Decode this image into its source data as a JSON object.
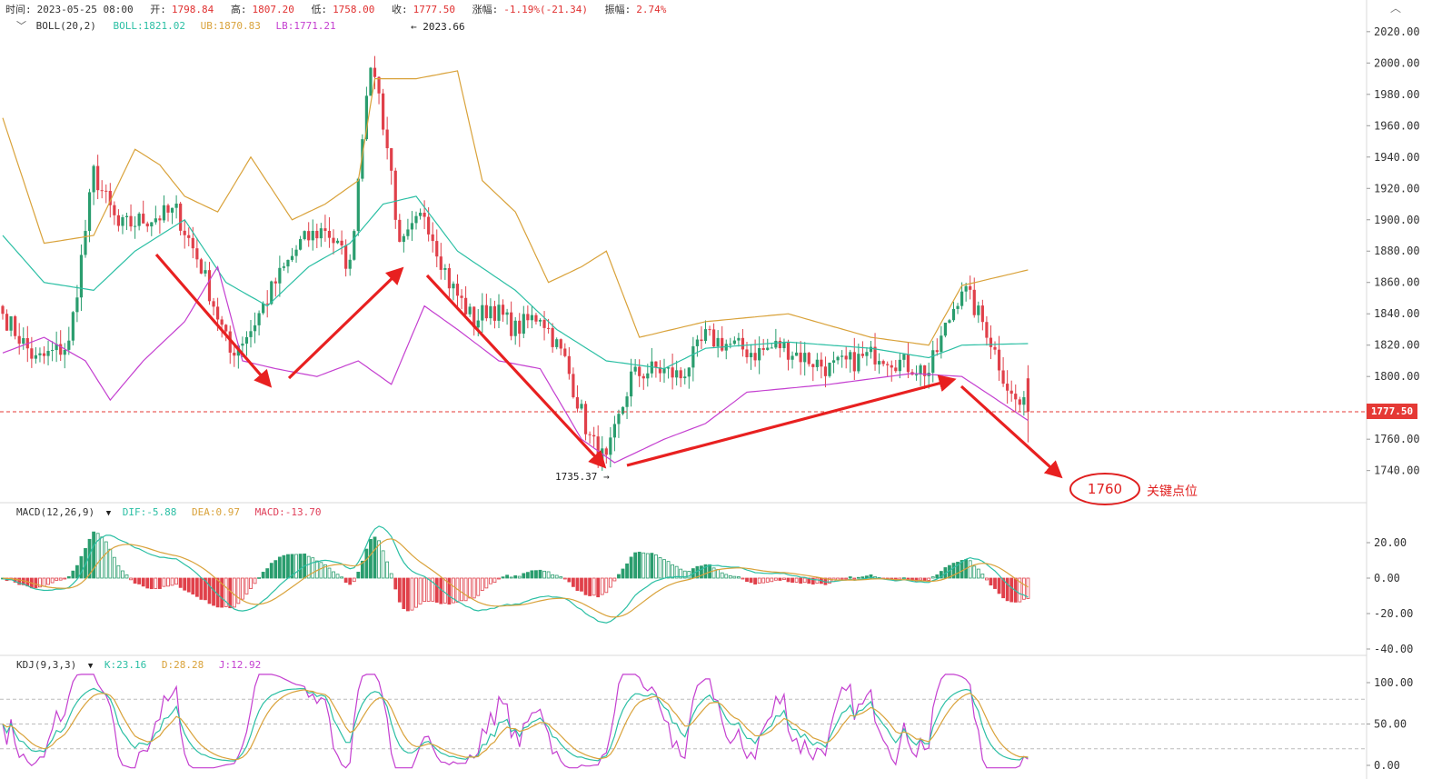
{
  "header": {
    "time_label": "时间:",
    "time": "2023-05-25 08:00",
    "open_label": "开:",
    "open": "1798.84",
    "high_label": "高:",
    "high": "1807.20",
    "low_label": "低:",
    "low": "1758.00",
    "close_label": "收:",
    "close": "1777.50",
    "change_label": "涨幅:",
    "change": "-1.19%(-21.34)",
    "amplitude_label": "振幅:",
    "amplitude": "2.74%"
  },
  "indicators": {
    "boll": {
      "name": "BOLL(20,2)",
      "boll": "BOLL:1821.02",
      "ub": "UB:1870.83",
      "lb": "LB:1771.21"
    },
    "macd": {
      "name": "MACD(12,26,9)",
      "dif": "DIF:-5.88",
      "dea": "DEA:0.97",
      "macd": "MACD:-13.70"
    },
    "kdj": {
      "name": "KDJ(9,3,3)",
      "k": "K:23.16",
      "d": "D:28.28",
      "j": "J:12.92"
    }
  },
  "annotations": {
    "high_marker": "2023.66",
    "low_marker": "1735.37",
    "current_price": "1777.50",
    "key_value": "1760",
    "key_text": "关键点位"
  },
  "colors": {
    "up": "#2a9d6e",
    "down": "#e0404a",
    "boll": "#2bbfa4",
    "ub": "#d9a23a",
    "lb": "#c43fd0",
    "arrow": "#e82020",
    "current_line": "#e53935"
  },
  "chart_data": [
    {
      "type": "candlestick",
      "title": "",
      "y_ticks": [
        "2020.00",
        "2000.00",
        "1980.00",
        "1960.00",
        "1940.00",
        "1920.00",
        "1900.00",
        "1880.00",
        "1860.00",
        "1840.00",
        "1820.00",
        "1800.00",
        "1760.00",
        "1740.00"
      ],
      "ylim": [
        1725,
        2030
      ],
      "close_waypoints": [
        [
          0,
          1840
        ],
        [
          8,
          1810
        ],
        [
          16,
          1820
        ],
        [
          22,
          1930
        ],
        [
          28,
          1895
        ],
        [
          34,
          1900
        ],
        [
          42,
          1905
        ],
        [
          48,
          1870
        ],
        [
          55,
          1815
        ],
        [
          60,
          1830
        ],
        [
          66,
          1860
        ],
        [
          72,
          1885
        ],
        [
          78,
          1895
        ],
        [
          84,
          1870
        ],
        [
          88,
          1985
        ],
        [
          90,
          1995
        ],
        [
          94,
          1930
        ],
        [
          96,
          1880
        ],
        [
          102,
          1905
        ],
        [
          108,
          1860
        ],
        [
          114,
          1835
        ],
        [
          118,
          1845
        ],
        [
          124,
          1830
        ],
        [
          130,
          1840
        ],
        [
          136,
          1810
        ],
        [
          142,
          1760
        ],
        [
          146,
          1745
        ],
        [
          152,
          1800
        ],
        [
          158,
          1805
        ],
        [
          164,
          1800
        ],
        [
          170,
          1825
        ],
        [
          176,
          1820
        ],
        [
          182,
          1815
        ],
        [
          188,
          1820
        ],
        [
          194,
          1812
        ],
        [
          200,
          1805
        ],
        [
          206,
          1810
        ],
        [
          212,
          1815
        ],
        [
          218,
          1808
        ],
        [
          224,
          1803
        ],
        [
          232,
          1858
        ],
        [
          238,
          1830
        ],
        [
          244,
          1787
        ],
        [
          248,
          1777.5
        ]
      ],
      "ub_waypoints": [
        [
          0,
          1965
        ],
        [
          10,
          1885
        ],
        [
          22,
          1890
        ],
        [
          32,
          1945
        ],
        [
          38,
          1935
        ],
        [
          44,
          1915
        ],
        [
          52,
          1905
        ],
        [
          60,
          1940
        ],
        [
          70,
          1900
        ],
        [
          78,
          1910
        ],
        [
          86,
          1925
        ],
        [
          90,
          1990
        ],
        [
          100,
          1990
        ],
        [
          110,
          1995
        ],
        [
          116,
          1925
        ],
        [
          124,
          1905
        ],
        [
          132,
          1860
        ],
        [
          140,
          1870
        ],
        [
          146,
          1880
        ],
        [
          154,
          1825
        ],
        [
          170,
          1835
        ],
        [
          190,
          1840
        ],
        [
          210,
          1825
        ],
        [
          224,
          1820
        ],
        [
          232,
          1858
        ],
        [
          248,
          1868
        ]
      ],
      "mid_waypoints": [
        [
          0,
          1890
        ],
        [
          10,
          1860
        ],
        [
          22,
          1855
        ],
        [
          32,
          1880
        ],
        [
          44,
          1900
        ],
        [
          54,
          1860
        ],
        [
          64,
          1845
        ],
        [
          74,
          1870
        ],
        [
          84,
          1885
        ],
        [
          92,
          1910
        ],
        [
          100,
          1915
        ],
        [
          110,
          1880
        ],
        [
          124,
          1855
        ],
        [
          134,
          1830
        ],
        [
          146,
          1810
        ],
        [
          160,
          1805
        ],
        [
          170,
          1818
        ],
        [
          190,
          1822
        ],
        [
          210,
          1818
        ],
        [
          224,
          1812
        ],
        [
          232,
          1820
        ],
        [
          248,
          1821
        ]
      ],
      "lb_waypoints": [
        [
          0,
          1815
        ],
        [
          10,
          1825
        ],
        [
          20,
          1810
        ],
        [
          26,
          1785
        ],
        [
          34,
          1810
        ],
        [
          44,
          1835
        ],
        [
          52,
          1870
        ],
        [
          58,
          1810
        ],
        [
          66,
          1805
        ],
        [
          76,
          1800
        ],
        [
          86,
          1810
        ],
        [
          94,
          1795
        ],
        [
          102,
          1845
        ],
        [
          110,
          1830
        ],
        [
          120,
          1810
        ],
        [
          130,
          1805
        ],
        [
          140,
          1760
        ],
        [
          148,
          1745
        ],
        [
          160,
          1760
        ],
        [
          170,
          1770
        ],
        [
          180,
          1790
        ],
        [
          200,
          1795
        ],
        [
          220,
          1802
        ],
        [
          232,
          1800
        ],
        [
          248,
          1772
        ]
      ]
    },
    {
      "type": "bar",
      "title": "",
      "y_ticks": [
        "20.00",
        "0.00",
        "-20.00",
        "-40.00"
      ],
      "ylim": [
        -43,
        33
      ]
    },
    {
      "type": "line",
      "title": "",
      "y_ticks": [
        "100.00",
        "50.00",
        "0.00"
      ],
      "ylim": [
        -5,
        112
      ]
    }
  ]
}
